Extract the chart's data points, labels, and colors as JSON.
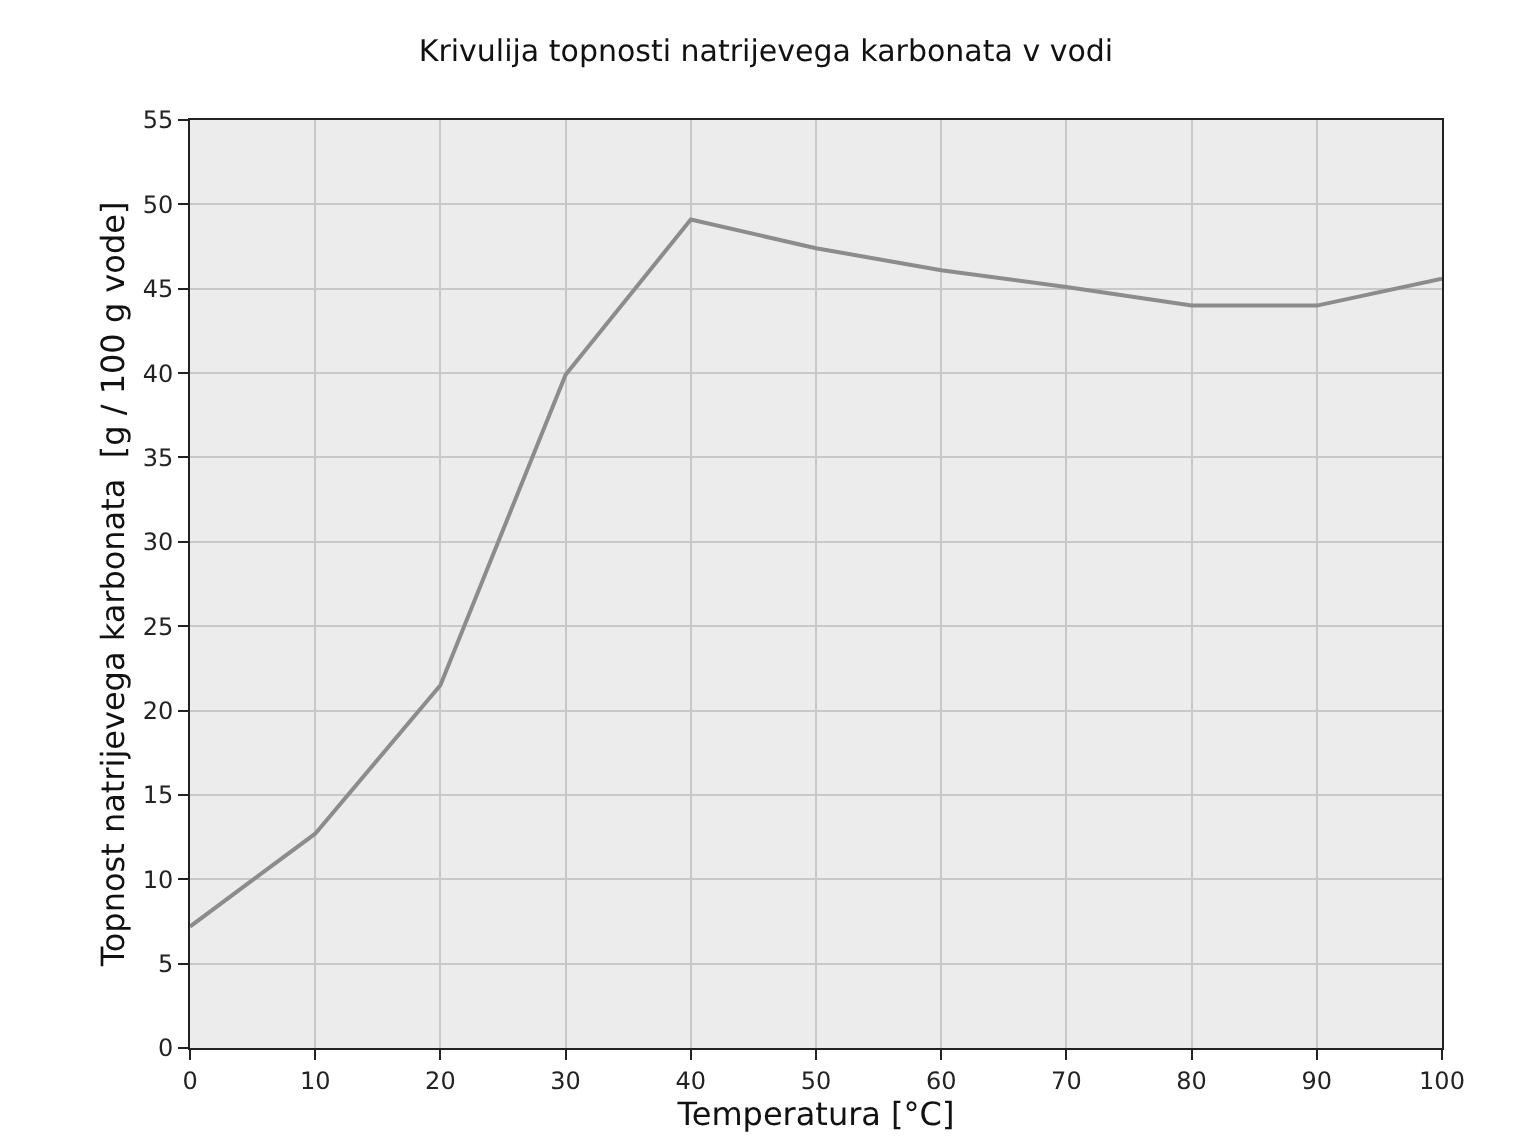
{
  "chart_data": {
    "type": "line",
    "title": "Krivulija topnosti natrijevega karbonata v vodi",
    "xlabel": "Temperatura [°C]",
    "ylabel": "Topnost natrijevega karbonata  [g / 100 g vode]",
    "x": [
      0,
      10,
      20,
      30,
      40,
      50,
      60,
      70,
      80,
      90,
      100
    ],
    "series": [
      {
        "color": "#8c8c8c",
        "values": [
          7.2,
          12.7,
          21.5,
          39.9,
          49.1,
          47.4,
          46.1,
          45.1,
          44.0,
          44.0,
          45.6
        ]
      }
    ],
    "xlim": [
      0,
      100
    ],
    "xticks": [
      0,
      10,
      20,
      30,
      40,
      50,
      60,
      70,
      80,
      90,
      100
    ],
    "ylim": [
      0,
      55
    ],
    "yticks": [
      0,
      5,
      10,
      15,
      20,
      25,
      30,
      35,
      40,
      45,
      50,
      55
    ],
    "grid": true,
    "marker": "none",
    "line_style": "solid"
  }
}
